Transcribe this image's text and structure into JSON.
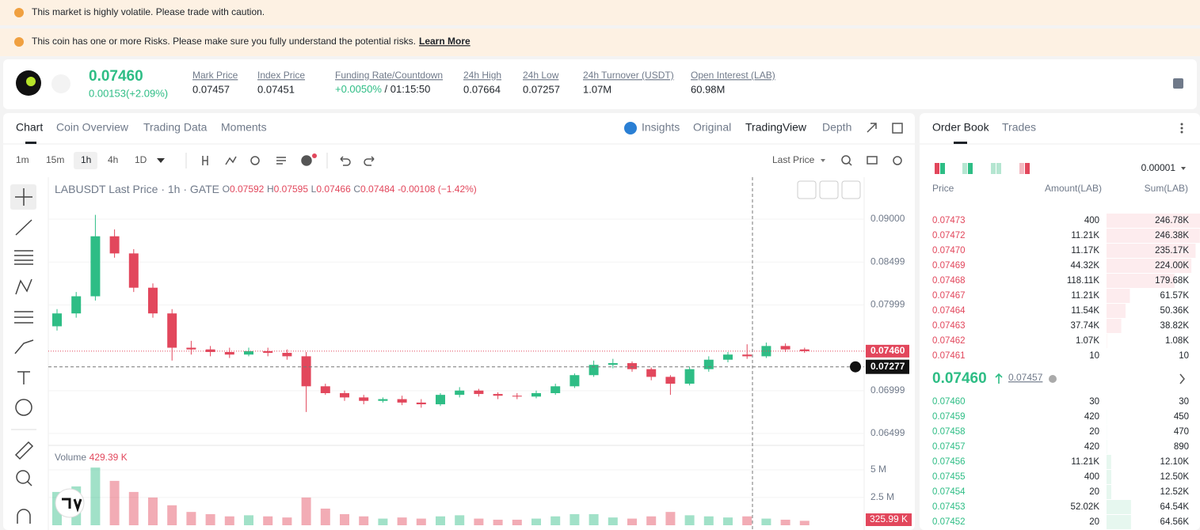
{
  "banners": [
    "This market is highly volatile. Please trade with caution.",
    "This coin has one or more Risks. Please make sure you fully understand the potential risks."
  ],
  "learn_more": "Learn More",
  "header": {
    "price": "0.07460",
    "change": "0.00153(+2.09%)",
    "stats": [
      {
        "label": "Mark Price",
        "value": "0.07457"
      },
      {
        "label": "Index Price",
        "value": "0.07451"
      },
      {
        "label": "Funding Rate/Countdown",
        "value": "+0.0050%",
        "countdown": "/ 01:15:50"
      },
      {
        "label": "24h High",
        "value": "0.07664"
      },
      {
        "label": "24h Low",
        "value": "0.07257"
      },
      {
        "label": "24h Turnover (USDT)",
        "value": "1.07M"
      },
      {
        "label": "Open Interest (LAB)",
        "value": "60.98M"
      }
    ]
  },
  "tabs": [
    "Chart",
    "Coin Overview",
    "Trading Data",
    "Moments"
  ],
  "views": [
    "Insights",
    "Original",
    "TradingView",
    "Depth"
  ],
  "intervals": [
    "1m",
    "15m",
    "1h",
    "4h",
    "1D"
  ],
  "price_type": "Last Price",
  "chart_data": {
    "type": "candlestick",
    "title": "LABUSDT Last Price · 1h · GATE",
    "ohlc_text": [
      {
        "key": "O",
        "value": "0.07592"
      },
      {
        "key": "H",
        "value": "0.07595"
      },
      {
        "key": "L",
        "value": "0.07466"
      },
      {
        "key": "C",
        "value": "0.07484"
      }
    ],
    "change_text": "-0.00108 (−1.42%)",
    "up_color": "#2ebd85",
    "down_color": "#e2475c",
    "open": [
      0.0775,
      0.079,
      0.081,
      0.088,
      0.086,
      0.082,
      0.079,
      0.075,
      0.0748,
      0.0745,
      0.0742,
      0.0746,
      0.0744,
      0.074,
      0.0705,
      0.0697,
      0.0692,
      0.0688,
      0.069,
      0.0686,
      0.0684,
      0.0695,
      0.07,
      0.0696,
      0.0694,
      0.0693,
      0.0697,
      0.0705,
      0.0718,
      0.073,
      0.0732,
      0.0725,
      0.0716,
      0.0708,
      0.0725,
      0.0736,
      0.0742,
      0.074,
      0.0752,
      0.0748
    ],
    "high": [
      0.0795,
      0.0815,
      0.0905,
      0.0888,
      0.0865,
      0.0825,
      0.0795,
      0.0758,
      0.0752,
      0.075,
      0.075,
      0.075,
      0.0748,
      0.0745,
      0.0708,
      0.07,
      0.0695,
      0.0692,
      0.0694,
      0.069,
      0.0697,
      0.0704,
      0.0702,
      0.0698,
      0.0697,
      0.07,
      0.0708,
      0.072,
      0.0735,
      0.0737,
      0.0734,
      0.0727,
      0.0718,
      0.0728,
      0.074,
      0.0745,
      0.0754,
      0.0756,
      0.0755,
      0.075
    ],
    "low": [
      0.077,
      0.0785,
      0.0805,
      0.0855,
      0.0815,
      0.0785,
      0.0735,
      0.0742,
      0.074,
      0.0738,
      0.074,
      0.074,
      0.0736,
      0.0675,
      0.0695,
      0.0688,
      0.0684,
      0.0686,
      0.0683,
      0.068,
      0.0682,
      0.0692,
      0.0693,
      0.069,
      0.069,
      0.0691,
      0.0695,
      0.0703,
      0.0716,
      0.0726,
      0.0722,
      0.0712,
      0.0695,
      0.0706,
      0.0722,
      0.0733,
      0.0737,
      0.0738,
      0.0745,
      0.0744
    ],
    "close": [
      0.079,
      0.081,
      0.088,
      0.086,
      0.082,
      0.079,
      0.075,
      0.0748,
      0.0745,
      0.0742,
      0.0746,
      0.0744,
      0.074,
      0.0705,
      0.0697,
      0.0692,
      0.0688,
      0.069,
      0.0686,
      0.0684,
      0.0695,
      0.07,
      0.0696,
      0.0694,
      0.0693,
      0.0697,
      0.0705,
      0.0718,
      0.073,
      0.0732,
      0.0725,
      0.0716,
      0.0708,
      0.0725,
      0.0736,
      0.0742,
      0.074,
      0.0752,
      0.0748,
      0.0746
    ],
    "ylim": [
      0.0637,
      0.0948
    ],
    "yticks": [
      {
        "value": 0.09,
        "label": "0.09000"
      },
      {
        "value": 0.08499,
        "label": "0.08499"
      },
      {
        "value": 0.07999,
        "label": "0.07999"
      },
      {
        "value": 0.06999,
        "label": "0.06999"
      },
      {
        "value": 0.06499,
        "label": "0.06499"
      }
    ],
    "last_price": {
      "value": 0.0746,
      "label": "0.07460"
    },
    "crosshair": {
      "value": 0.07277,
      "label": "0.07277"
    },
    "volume": {
      "label": "Volume",
      "value_label": "429.39 K",
      "values": [
        3.0,
        3.5,
        5.2,
        4.0,
        3.0,
        2.5,
        1.8,
        1.2,
        1.0,
        0.8,
        0.9,
        0.8,
        0.7,
        2.5,
        1.5,
        1.0,
        0.8,
        0.6,
        0.7,
        0.6,
        0.8,
        0.9,
        0.6,
        0.5,
        0.5,
        0.6,
        0.8,
        1.0,
        1.0,
        0.7,
        0.6,
        0.8,
        1.2,
        0.9,
        0.8,
        0.7,
        0.8,
        0.6,
        0.5,
        0.4
      ],
      "ylim": [
        0,
        6.7
      ],
      "yticks": [
        {
          "value": 5,
          "label": "5 M"
        },
        {
          "value": 2.5,
          "label": "2.5 M"
        }
      ],
      "last_label": "325.99 K"
    }
  },
  "order_book": {
    "tabs": [
      "Order Book",
      "Trades"
    ],
    "precision": "0.00001",
    "headers": [
      "Price",
      "Amount(LAB)",
      "Sum(LAB)"
    ],
    "asks": [
      [
        "0.07473",
        "400",
        "246.78K"
      ],
      [
        "0.07472",
        "11.21K",
        "246.38K"
      ],
      [
        "0.07470",
        "11.17K",
        "235.17K"
      ],
      [
        "0.07469",
        "44.32K",
        "224.00K"
      ],
      [
        "0.07468",
        "118.11K",
        "179.68K"
      ],
      [
        "0.07467",
        "11.21K",
        "61.57K"
      ],
      [
        "0.07464",
        "11.54K",
        "50.36K"
      ],
      [
        "0.07463",
        "37.74K",
        "38.82K"
      ],
      [
        "0.07462",
        "1.07K",
        "1.08K"
      ],
      [
        "0.07461",
        "10",
        "10"
      ]
    ],
    "mid_price": "0.07460",
    "mark_price": "0.07457",
    "bids": [
      [
        "0.07460",
        "30",
        "30"
      ],
      [
        "0.07459",
        "420",
        "450"
      ],
      [
        "0.07458",
        "20",
        "470"
      ],
      [
        "0.07457",
        "420",
        "890"
      ],
      [
        "0.07456",
        "11.21K",
        "12.10K"
      ],
      [
        "0.07455",
        "400",
        "12.50K"
      ],
      [
        "0.07454",
        "20",
        "12.52K"
      ],
      [
        "0.07453",
        "52.02K",
        "64.54K"
      ],
      [
        "0.07452",
        "20",
        "64.56K"
      ]
    ]
  }
}
